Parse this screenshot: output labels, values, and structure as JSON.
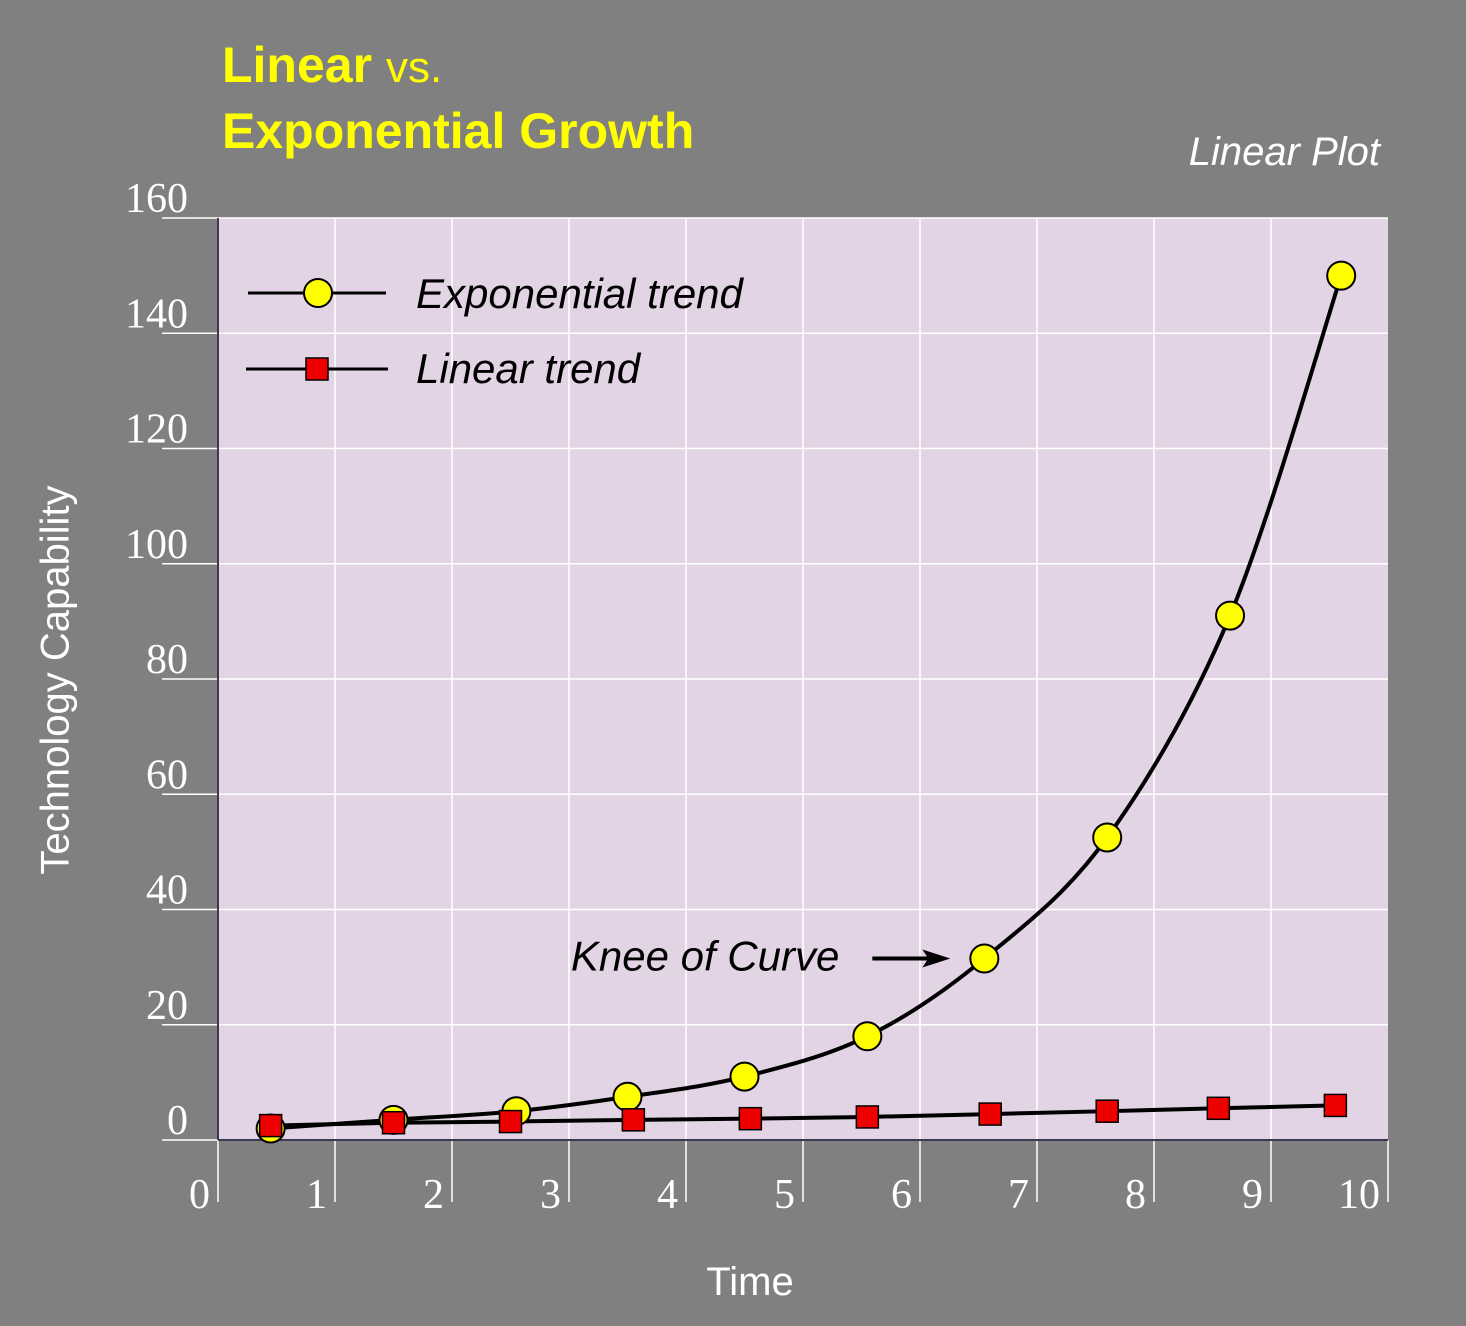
{
  "title": {
    "part1": "Linear",
    "part2": "vs.",
    "line2": "Exponential Growth"
  },
  "subtitle": "Linear Plot",
  "colors": {
    "background": "#808080",
    "plot_bg": "#e2d4e4",
    "title": "#ffff00",
    "exp_marker": "#ffff00",
    "lin_marker": "#ee0000",
    "grid": "#ffffff",
    "line": "#000000"
  },
  "chart_data": {
    "type": "line",
    "title": "Linear vs. Exponential Growth",
    "xlabel": "Time",
    "ylabel": "Technology Capability",
    "xlim": [
      0,
      10
    ],
    "ylim": [
      0,
      160
    ],
    "xticks": [
      "0",
      "1",
      "2",
      "3",
      "4",
      "5",
      "6",
      "7",
      "8",
      "9",
      "10"
    ],
    "yticks": [
      "0",
      "20",
      "40",
      "60",
      "80",
      "100",
      "120",
      "140",
      "160"
    ],
    "grid": true,
    "legend_position": "top-left",
    "series": [
      {
        "name": "Exponential trend",
        "marker": "circle",
        "x": [
          0.45,
          1.5,
          2.55,
          3.5,
          4.5,
          5.55,
          6.55,
          7.6,
          8.65,
          9.6
        ],
        "y": [
          2,
          3.5,
          5,
          7.5,
          11,
          18,
          31.5,
          52.5,
          91,
          150
        ]
      },
      {
        "name": "Linear trend",
        "marker": "square",
        "x": [
          0.45,
          1.5,
          2.5,
          3.55,
          4.55,
          5.55,
          6.6,
          7.6,
          8.55,
          9.55
        ],
        "y": [
          2.5,
          3,
          3.2,
          3.5,
          3.7,
          4,
          4.5,
          5,
          5.5,
          6
        ]
      }
    ],
    "annotations": [
      {
        "text": "Knee of Curve",
        "target_series": "Exponential trend",
        "target_index": 6
      }
    ]
  }
}
